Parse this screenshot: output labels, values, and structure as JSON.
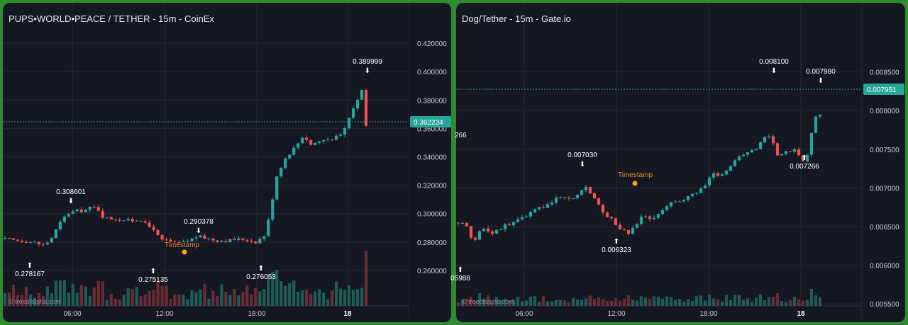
{
  "colors": {
    "background": "#151823",
    "frame": "#2e8b2e",
    "up": "#26a69a",
    "down": "#ef5350",
    "grid": "#242836",
    "current_price_line": "#26a69a",
    "timestamp_dot": "#f5a623"
  },
  "chart_data": [
    {
      "type": "candlestick",
      "title": "PUPS•WORLD•PEACE / TETHER - 15m - CoinEx",
      "watermark": "© treeofalpha.com",
      "y_ticks": [
        "0.420000",
        "0.400000",
        "0.380000",
        "0.360000",
        "0.340000",
        "0.320000",
        "0.300000",
        "0.280000",
        "0.260000"
      ],
      "ylim": [
        0.25,
        0.43
      ],
      "x_ticks": [
        "06:00",
        "12:00",
        "18:00",
        "18"
      ],
      "current_price": "0.362234",
      "annotations": [
        {
          "label": "0.308601",
          "kind": "high"
        },
        {
          "label": "0.278167",
          "kind": "low"
        },
        {
          "label": "0.275135",
          "kind": "low"
        },
        {
          "label": "0.290378",
          "kind": "high"
        },
        {
          "label": "0.276053",
          "kind": "low"
        },
        {
          "label": "0.389999",
          "kind": "high"
        }
      ],
      "timestamp_label": "Timestamp",
      "close_path": [
        [
          0,
          0.282
        ],
        [
          10,
          0.281
        ],
        [
          20,
          0.28
        ],
        [
          27,
          0.278
        ],
        [
          32,
          0.281
        ],
        [
          38,
          0.292
        ],
        [
          44,
          0.3
        ],
        [
          50,
          0.302
        ],
        [
          56,
          0.302
        ],
        [
          62,
          0.305
        ],
        [
          66,
          0.303
        ],
        [
          70,
          0.297
        ],
        [
          80,
          0.296
        ],
        [
          90,
          0.295
        ],
        [
          96,
          0.296
        ],
        [
          100,
          0.292
        ],
        [
          106,
          0.289
        ],
        [
          110,
          0.281
        ],
        [
          116,
          0.281
        ],
        [
          120,
          0.279
        ],
        [
          128,
          0.28
        ],
        [
          132,
          0.282
        ],
        [
          136,
          0.284
        ],
        [
          142,
          0.283
        ],
        [
          150,
          0.281
        ],
        [
          158,
          0.281
        ],
        [
          164,
          0.282
        ],
        [
          170,
          0.282
        ],
        [
          174,
          0.281
        ],
        [
          178,
          0.28
        ],
        [
          184,
          0.285
        ],
        [
          188,
          0.3
        ],
        [
          192,
          0.325
        ],
        [
          198,
          0.338
        ],
        [
          204,
          0.345
        ],
        [
          208,
          0.35
        ],
        [
          212,
          0.356
        ],
        [
          216,
          0.348
        ],
        [
          220,
          0.35
        ],
        [
          226,
          0.352
        ],
        [
          232,
          0.353
        ],
        [
          238,
          0.355
        ],
        [
          242,
          0.362
        ],
        [
          246,
          0.373
        ],
        [
          250,
          0.38
        ],
        [
          253,
          0.388
        ],
        [
          256,
          0.362
        ]
      ]
    },
    {
      "type": "candlestick",
      "title": "Dog/Tether - 15m - Gate.io",
      "watermark": "© treeofalpha.com",
      "y_ticks": [
        "0.008500",
        "0.008000",
        "0.007500",
        "0.007000",
        "0.006500",
        "0.006000",
        "0.005500"
      ],
      "ylim": [
        0.0055,
        0.0089
      ],
      "x_ticks": [
        "06:00",
        "12:00",
        "18:00",
        "18"
      ],
      "current_price": "0.007951",
      "annotations": [
        {
          "label": "266",
          "kind": "edge"
        },
        {
          "label": "05988",
          "kind": "low"
        },
        {
          "label": "0.007030",
          "kind": "high"
        },
        {
          "label": "0.006323",
          "kind": "low"
        },
        {
          "label": "0.008100",
          "kind": "high"
        },
        {
          "label": "0.007980",
          "kind": "high"
        },
        {
          "label": "0.007266",
          "kind": "low"
        }
      ],
      "timestamp_label": "Timestamp",
      "close_path": [
        [
          0,
          0.00655
        ],
        [
          6,
          0.0065
        ],
        [
          10,
          0.0063
        ],
        [
          16,
          0.0065
        ],
        [
          22,
          0.0064
        ],
        [
          30,
          0.0065
        ],
        [
          36,
          0.00655
        ],
        [
          42,
          0.0066
        ],
        [
          50,
          0.0067
        ],
        [
          56,
          0.00675
        ],
        [
          62,
          0.0068
        ],
        [
          68,
          0.0069
        ],
        [
          76,
          0.00685
        ],
        [
          82,
          0.00695
        ],
        [
          86,
          0.007
        ],
        [
          90,
          0.0069
        ],
        [
          96,
          0.0067
        ],
        [
          102,
          0.0066
        ],
        [
          106,
          0.0065
        ],
        [
          110,
          0.00645
        ],
        [
          114,
          0.0064
        ],
        [
          118,
          0.0065
        ],
        [
          124,
          0.00665
        ],
        [
          130,
          0.0066
        ],
        [
          136,
          0.0067
        ],
        [
          142,
          0.0068
        ],
        [
          150,
          0.00685
        ],
        [
          156,
          0.0069
        ],
        [
          164,
          0.007
        ],
        [
          170,
          0.0072
        ],
        [
          176,
          0.00715
        ],
        [
          182,
          0.0073
        ],
        [
          188,
          0.0074
        ],
        [
          194,
          0.00745
        ],
        [
          200,
          0.0075
        ],
        [
          206,
          0.0077
        ],
        [
          210,
          0.0076
        ],
        [
          214,
          0.0074
        ],
        [
          218,
          0.00745
        ],
        [
          224,
          0.0075
        ],
        [
          230,
          0.00735
        ],
        [
          234,
          0.00745
        ],
        [
          238,
          0.0079
        ],
        [
          242,
          0.00795
        ]
      ]
    }
  ]
}
